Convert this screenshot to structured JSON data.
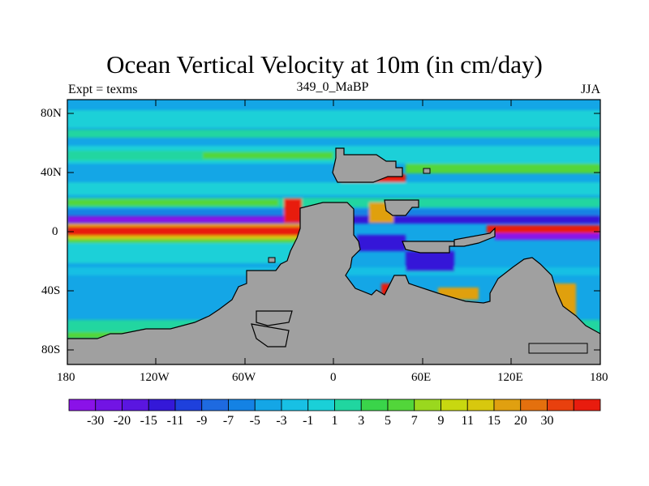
{
  "title": "Ocean Vertical Velocity at 10m (in cm/day)",
  "left_label": "Expt = texms",
  "center_label": "349_0_MaBP",
  "right_label": "JJA",
  "colors": {
    "land": "#a0a0a0",
    "coast": "#000000",
    "background_field": "#14a6e6",
    "cyan": "#1ad0d8",
    "teal": "#20d6a0",
    "green": "#52d63a",
    "light_green": "#9ad81e",
    "yellow": "#d8d40e",
    "orange": "#e0a010",
    "red": "#e81c0e",
    "blue": "#1e5ad6",
    "dark_blue": "#3418d8",
    "purple": "#8a12e8"
  },
  "map": {
    "lat_ticks": [
      "80N",
      "40N",
      "0",
      "40S",
      "80S"
    ],
    "lon_ticks": [
      "180",
      "120W",
      "60W",
      "0",
      "60E",
      "120E",
      "180"
    ]
  },
  "legend": {
    "colors": [
      "#8a12e8",
      "#7214e4",
      "#5a16e0",
      "#3418d8",
      "#1e40dc",
      "#1e6ae0",
      "#1482e4",
      "#14a6e6",
      "#18c0e4",
      "#1ad0d8",
      "#20d6a0",
      "#3ad44a",
      "#52d63a",
      "#9ad81e",
      "#c8d810",
      "#d8c80e",
      "#e0a010",
      "#e4700e",
      "#e8400e",
      "#e81c0e"
    ],
    "labels": [
      "-30",
      "-20",
      "-15",
      "-11",
      "-9",
      "-7",
      "-5",
      "-3",
      "-1",
      "1",
      "3",
      "5",
      "7",
      "9",
      "11",
      "15",
      "20",
      "30"
    ]
  }
}
